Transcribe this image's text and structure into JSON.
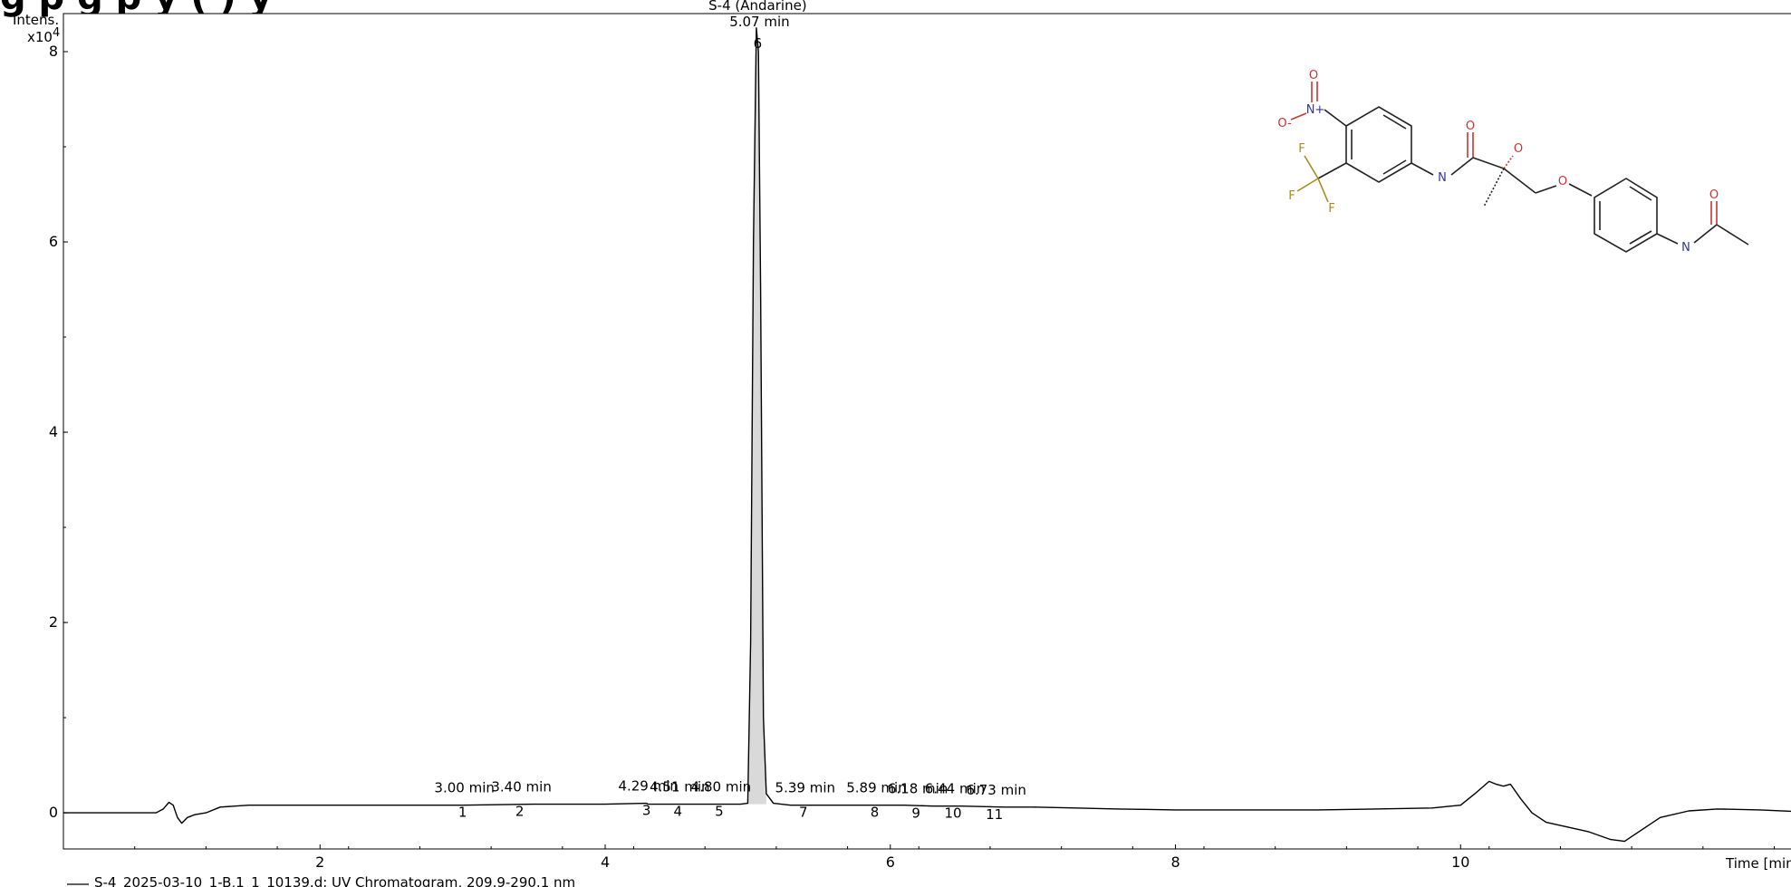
{
  "page_title_partial": "g       p         g p y (    )           y",
  "chart_data": {
    "type": "line",
    "y_axis_title": "Intens.",
    "y_axis_multiplier": "x10",
    "y_axis_exponent": "4",
    "x_axis_title": "Time [min]",
    "xlim": [
      0.2,
      12.4
    ],
    "ylim": [
      -0.38,
      8.4
    ],
    "x_ticks": [
      2,
      4,
      6,
      8,
      10
    ],
    "y_ticks": [
      0,
      2,
      4,
      6,
      8
    ],
    "compound_label": "S-4 (Andarine)",
    "trace_legend": "S-4_2025-03-10_1-B,1_1_10139.d: UV Chromatogram, 209.9-290.1 nm",
    "line_color": "#000000",
    "peak_fill_color": "#d9d9d9",
    "trace": [
      [
        0.2,
        0.0
      ],
      [
        0.85,
        0.0
      ],
      [
        0.9,
        0.04
      ],
      [
        0.94,
        0.11
      ],
      [
        0.97,
        0.08
      ],
      [
        1.0,
        -0.05
      ],
      [
        1.03,
        -0.11
      ],
      [
        1.07,
        -0.05
      ],
      [
        1.12,
        -0.02
      ],
      [
        1.2,
        0.0
      ],
      [
        1.3,
        0.06
      ],
      [
        1.5,
        0.08
      ],
      [
        2.0,
        0.08
      ],
      [
        2.5,
        0.08
      ],
      [
        3.0,
        0.08
      ],
      [
        3.5,
        0.09
      ],
      [
        4.0,
        0.09
      ],
      [
        4.3,
        0.09
      ],
      [
        4.29,
        0.1
      ],
      [
        4.4,
        0.09
      ],
      [
        4.6,
        0.09
      ],
      [
        4.8,
        0.09
      ],
      [
        4.95,
        0.09
      ],
      [
        5.0,
        0.1
      ],
      [
        5.02,
        1.8
      ],
      [
        5.04,
        6.0
      ],
      [
        5.06,
        8.25
      ],
      [
        5.075,
        8.0
      ],
      [
        5.09,
        5.5
      ],
      [
        5.11,
        1.0
      ],
      [
        5.13,
        0.2
      ],
      [
        5.18,
        0.1
      ],
      [
        5.3,
        0.08
      ],
      [
        5.5,
        0.08
      ],
      [
        5.7,
        0.08
      ],
      [
        5.9,
        0.08
      ],
      [
        6.1,
        0.08
      ],
      [
        6.3,
        0.07
      ],
      [
        6.5,
        0.07
      ],
      [
        6.8,
        0.06
      ],
      [
        7.0,
        0.06
      ],
      [
        7.3,
        0.05
      ],
      [
        7.6,
        0.04
      ],
      [
        8.0,
        0.03
      ],
      [
        8.5,
        0.03
      ],
      [
        9.0,
        0.03
      ],
      [
        9.4,
        0.04
      ],
      [
        9.8,
        0.05
      ],
      [
        10.0,
        0.08
      ],
      [
        10.1,
        0.2
      ],
      [
        10.2,
        0.33
      ],
      [
        10.25,
        0.3
      ],
      [
        10.3,
        0.28
      ],
      [
        10.35,
        0.3
      ],
      [
        10.42,
        0.15
      ],
      [
        10.5,
        0.0
      ],
      [
        10.6,
        -0.1
      ],
      [
        10.75,
        -0.15
      ],
      [
        10.9,
        -0.2
      ],
      [
        11.05,
        -0.28
      ],
      [
        11.15,
        -0.3
      ],
      [
        11.25,
        -0.2
      ],
      [
        11.4,
        -0.05
      ],
      [
        11.6,
        0.02
      ],
      [
        11.8,
        0.04
      ],
      [
        12.1,
        0.03
      ],
      [
        12.4,
        0.01
      ]
    ],
    "peaks": [
      {
        "number": "1",
        "rt_label": "3.00 min",
        "x": 3.0,
        "y": 0.08
      },
      {
        "number": "2",
        "rt_label": "3.40 min",
        "x": 3.4,
        "y": 0.09
      },
      {
        "number": "3",
        "rt_label": "4.29 min",
        "x": 4.29,
        "y": 0.1
      },
      {
        "number": "4",
        "rt_label": "4.51 min",
        "x": 4.51,
        "y": 0.09
      },
      {
        "number": "5",
        "rt_label": "4.80 min",
        "x": 4.8,
        "y": 0.09
      },
      {
        "number": "6",
        "rt_label": "5.07 min",
        "x": 5.07,
        "y": 8.25
      },
      {
        "number": "7",
        "rt_label": "5.39 min",
        "x": 5.39,
        "y": 0.08
      },
      {
        "number": "8",
        "rt_label": "5.89 min",
        "x": 5.89,
        "y": 0.08
      },
      {
        "number": "9",
        "rt_label": "6.18 min",
        "x": 6.18,
        "y": 0.07
      },
      {
        "number": "10",
        "rt_label": "6.44 min",
        "x": 6.44,
        "y": 0.07
      },
      {
        "number": "11",
        "rt_label": "6.73 min",
        "x": 6.73,
        "y": 0.06
      }
    ],
    "structure_atom_labels": {
      "nitro_o1": "O",
      "nitro_n": "N+",
      "nitro_o2": "O-",
      "f1": "F",
      "f2": "F",
      "f3": "F",
      "amide_n": "N",
      "amide_o": "O",
      "hydroxyl_o": "O",
      "ether_o": "O",
      "acetamide_n": "N",
      "acetamide_o": "O"
    }
  }
}
